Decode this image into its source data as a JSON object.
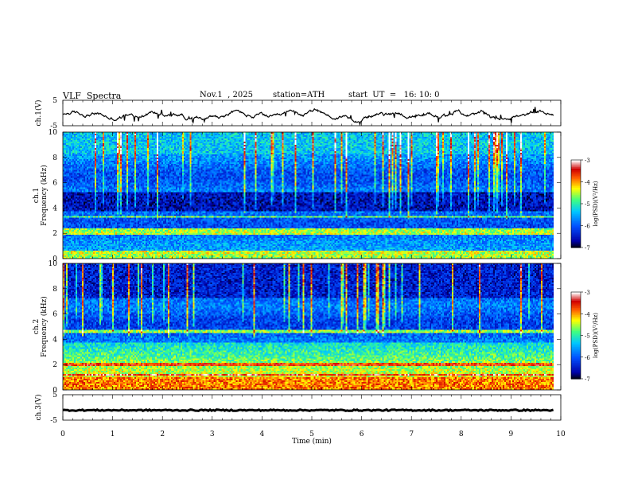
{
  "header": {
    "title": "VLF  Spectra",
    "date": "Nov.1  , 2025",
    "station": "station=ATH",
    "start": "start  UT  =   16: 10: 0"
  },
  "colors": {
    "spectrogram_background": "#1e7fd6",
    "trace_line": "#000000",
    "colormap": [
      "#000000",
      "#0000a8",
      "#0050ff",
      "#00c8ff",
      "#40ff80",
      "#ffff00",
      "#ff6000",
      "#d00000",
      "#ffffff"
    ]
  },
  "chart_data": [
    {
      "type": "line",
      "name": "ch1-waveform",
      "ylabel": "ch.1(V)",
      "ylim": [
        -5,
        5
      ],
      "yticks": [
        "5",
        "-5"
      ],
      "xlim": [
        0,
        10
      ],
      "series_description": "noisy voltage trace between about -3 V and +1 V"
    },
    {
      "type": "heatmap",
      "name": "ch1-spectrogram",
      "ylabel": "ch.1\nFrequency (kHz)",
      "ylabel_top": "ch.1",
      "ylabel_bottom": "Frequency  (kHz)",
      "ylim": [
        0,
        10
      ],
      "yticks": [
        "0",
        "2",
        "4",
        "6",
        "8",
        "10"
      ],
      "xlim": [
        0,
        10
      ],
      "data_xmax": 9.85,
      "colorbar": {
        "label": "log(PSD)(V²/Hz)",
        "range": [
          -7,
          -3
        ],
        "ticks": [
          "-3",
          "-4",
          "-5",
          "-6",
          "-7"
        ]
      }
    },
    {
      "type": "heatmap",
      "name": "ch2-spectrogram",
      "ylabel_top": "ch.2",
      "ylabel_bottom": "Frequency  (kHz)",
      "ylim": [
        0,
        10
      ],
      "yticks": [
        "0",
        "2",
        "4",
        "6",
        "8",
        "10"
      ],
      "xlim": [
        0,
        10
      ],
      "data_xmax": 9.85,
      "colorbar": {
        "label": "log(PSD)(V²/Hz)",
        "range": [
          -7,
          -3
        ],
        "ticks": [
          "-3",
          "-4",
          "-5",
          "-6",
          "-7"
        ]
      }
    },
    {
      "type": "line",
      "name": "ch3-waveform",
      "ylabel": "ch.3(V)",
      "ylim": [
        -5,
        5
      ],
      "yticks": [
        "5",
        "-5"
      ],
      "xlim": [
        0,
        10
      ],
      "series_description": "flat trace near -1 V"
    }
  ],
  "xaxis": {
    "label": "Time  (min)",
    "ticks": [
      "0",
      "1",
      "2",
      "3",
      "4",
      "5",
      "6",
      "7",
      "8",
      "9",
      "10"
    ]
  }
}
